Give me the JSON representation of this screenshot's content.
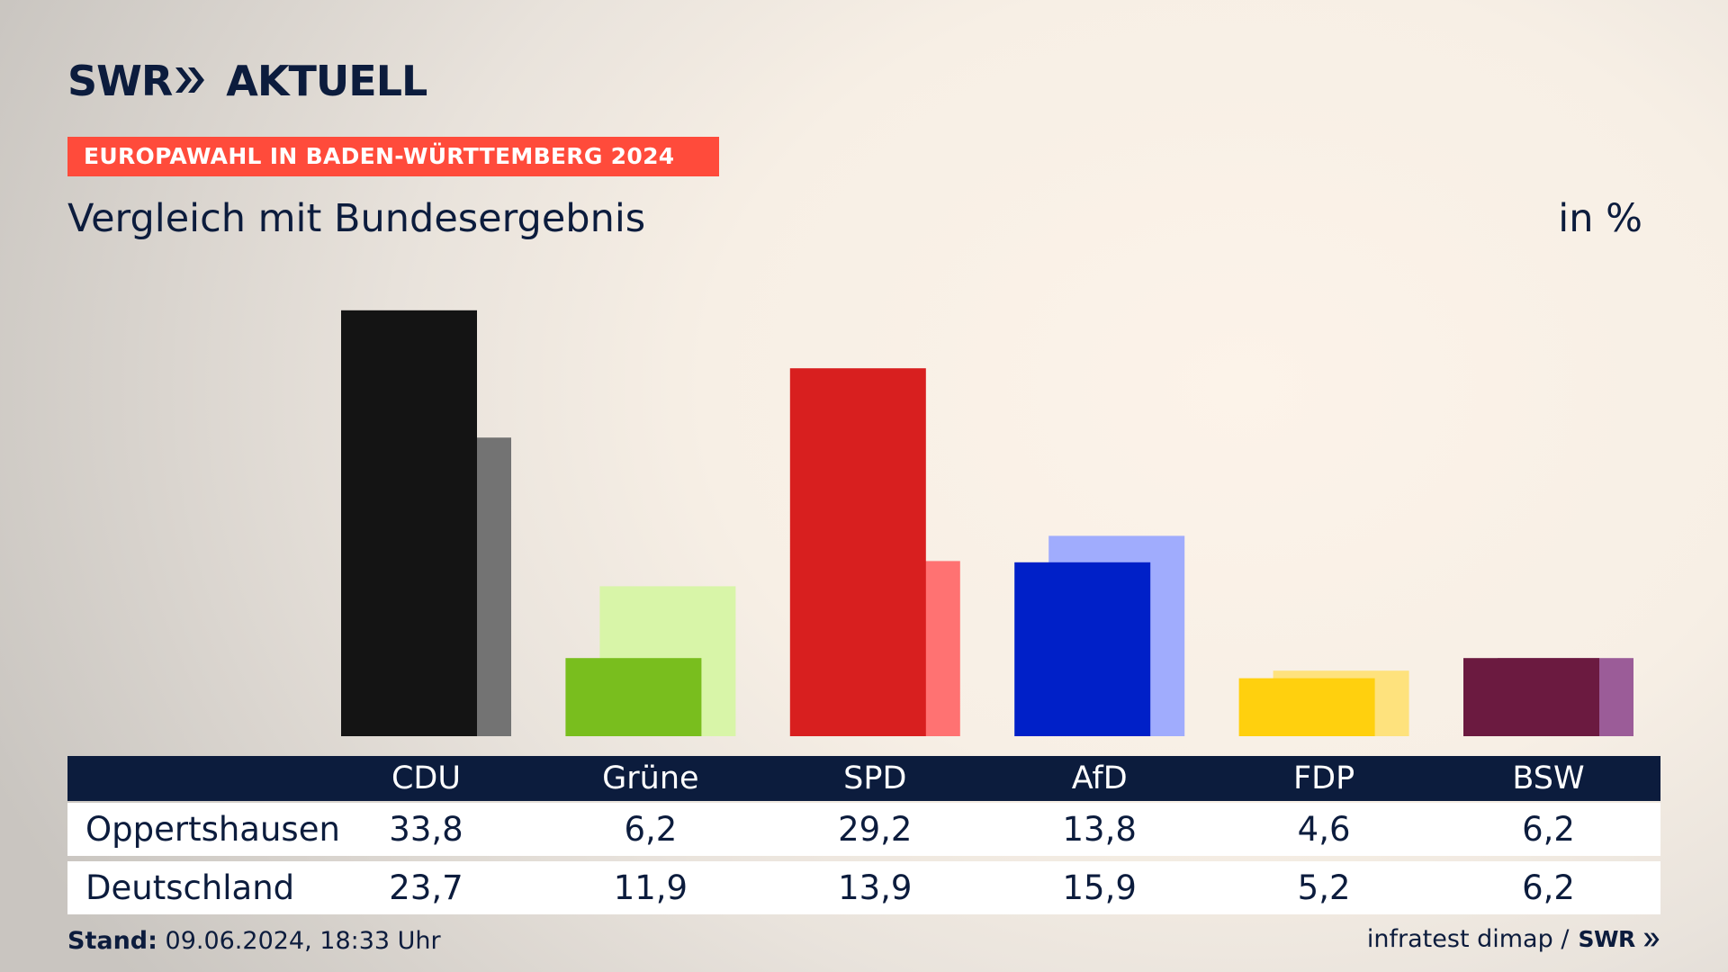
{
  "brand": {
    "logo_left": "SWR",
    "logo_right": "AKTUELL"
  },
  "header": {
    "tag": "EUROPAWAHL IN BADEN-WÜRTTEMBERG 2024",
    "title": "Vergleich mit Bundesergebnis",
    "unit": "in %"
  },
  "chart_data": {
    "type": "bar",
    "categories": [
      "CDU",
      "Grüne",
      "SPD",
      "AfD",
      "FDP",
      "BSW"
    ],
    "series": [
      {
        "name": "Oppertshausen",
        "values": [
          33.8,
          6.2,
          29.2,
          13.8,
          4.6,
          6.2
        ]
      },
      {
        "name": "Deutschland",
        "values": [
          23.7,
          11.9,
          13.9,
          15.9,
          5.2,
          6.2
        ]
      }
    ],
    "value_labels": {
      "Oppertshausen": [
        "33,8",
        "6,2",
        "29,2",
        "13,8",
        "4,6",
        "6,2"
      ],
      "Deutschland": [
        "23,7",
        "11,9",
        "13,9",
        "15,9",
        "5,2",
        "6,2"
      ]
    },
    "colors": {
      "primary": [
        "#141414",
        "#79be1e",
        "#d81f1f",
        "#0020c8",
        "#ffd00e",
        "#6b1a40"
      ],
      "secondary": [
        "#737373",
        "#d8f5a8",
        "#ff7272",
        "#a0acfd",
        "#fee27d",
        "#9b5c98"
      ]
    },
    "ylim": [
      0,
      35
    ],
    "grid": false
  },
  "footer": {
    "stand_label": "Stand:",
    "stand_value": "09.06.2024, 18:33 Uhr",
    "source": "infratest dimap /",
    "source_logo": "SWR"
  }
}
